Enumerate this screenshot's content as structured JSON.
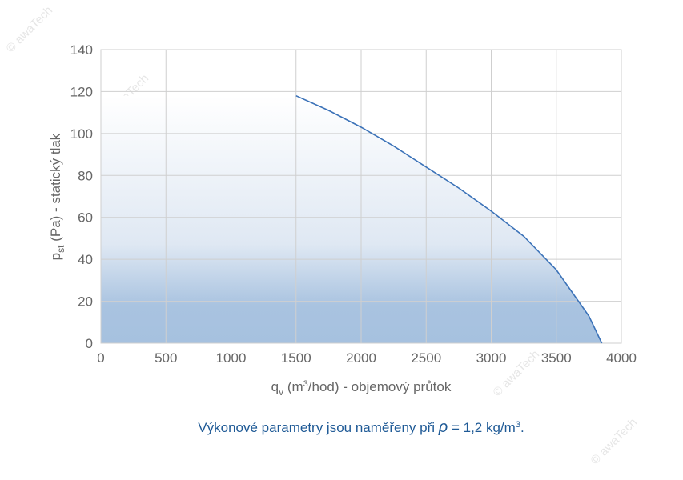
{
  "chart_data": {
    "type": "line",
    "x": [
      1500,
      1750,
      2000,
      2250,
      2500,
      2750,
      3000,
      3250,
      3500,
      3750,
      3850
    ],
    "series": [
      {
        "color": "#3b72b8",
        "values": [
          118,
          111,
          103,
          94,
          84,
          74,
          63,
          51,
          35,
          13,
          0
        ]
      }
    ],
    "xlim": [
      0,
      4000
    ],
    "xticks": [
      0,
      500,
      1000,
      1500,
      2000,
      2500,
      3000,
      3500,
      4000
    ],
    "ylim": [
      0,
      140
    ],
    "yticks": [
      0,
      20,
      40,
      60,
      80,
      100,
      120,
      140
    ],
    "grid": true,
    "ylabel": {
      "base": "p",
      "sub": "st",
      "rest": " (Pa) - statický tlak"
    },
    "xlabel": {
      "base": "q",
      "sub": "v",
      "unit": " (m",
      "sup": "3",
      "rest": "/hod) - objemový průtok"
    },
    "note": {
      "text": "Výkonové parametry jsou naměřeny při ",
      "symbol": "ρ",
      "rest": " = 1,2 kg/m",
      "sup": "3",
      "end": "."
    },
    "watermark": "© awaTech"
  }
}
